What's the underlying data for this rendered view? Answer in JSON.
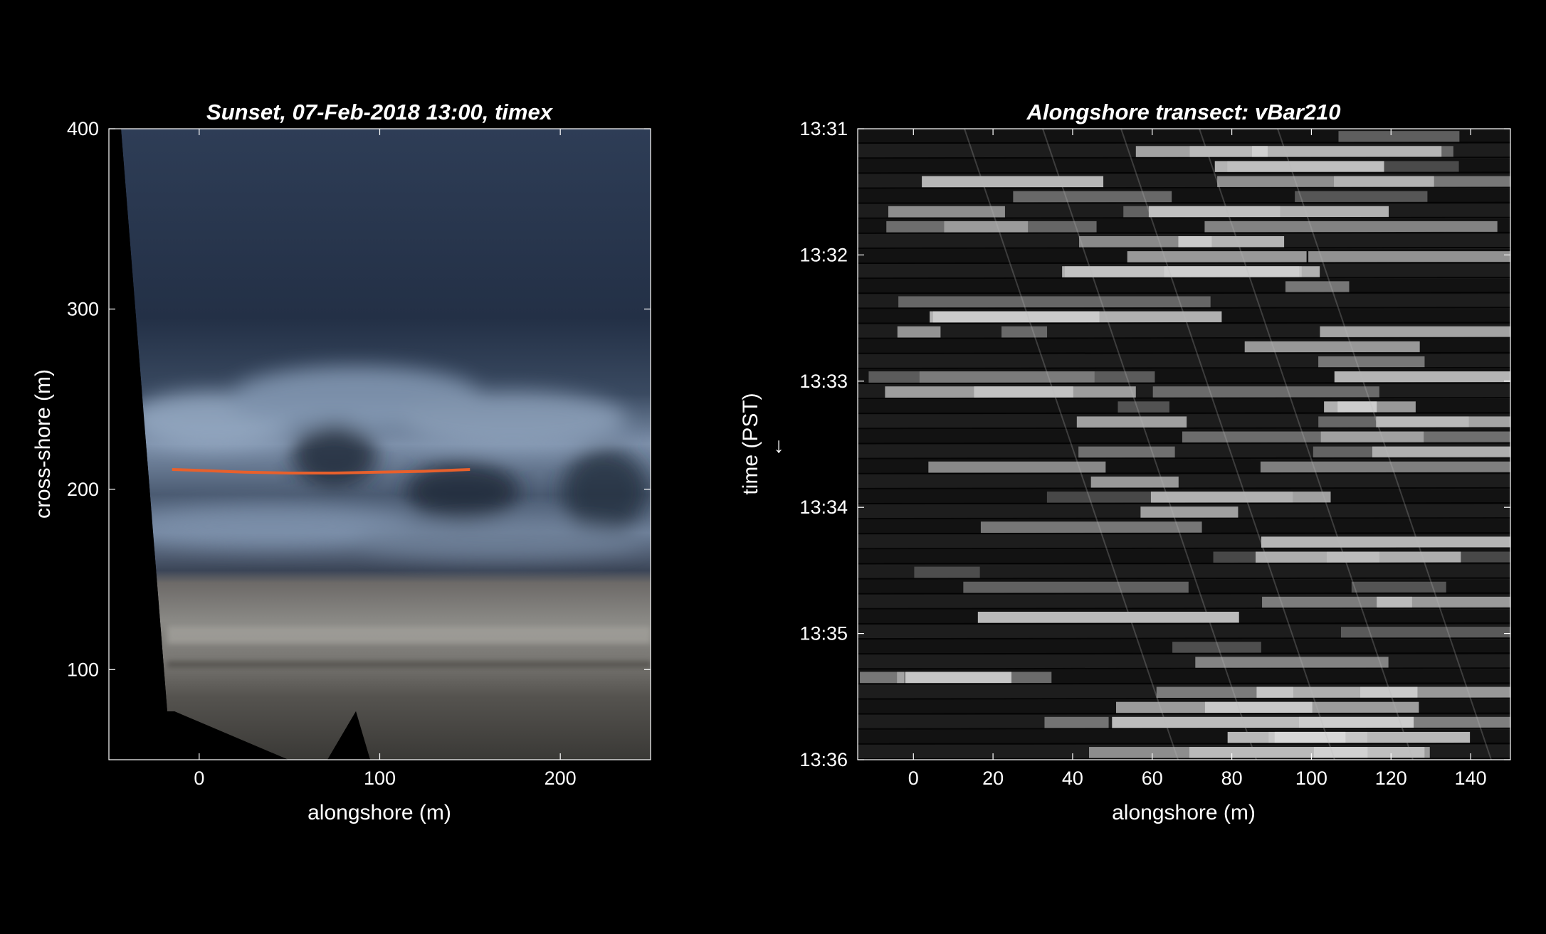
{
  "chart_data": [
    {
      "type": "image",
      "title": "Sunset, 07-Feb-2018 13:00, timex",
      "xlabel": "alongshore (m)",
      "ylabel": "cross-shore (m)",
      "xlim": [
        -50,
        250
      ],
      "ylim": [
        50,
        400
      ],
      "xticks": [
        0,
        100,
        200
      ],
      "yticks": [
        100,
        200,
        300,
        400
      ],
      "xtick_labels": [
        "0",
        "100",
        "200"
      ],
      "ytick_labels": [
        "100",
        "200",
        "300",
        "400"
      ],
      "series": [
        {
          "x": [
            -15,
            0,
            25,
            50,
            75,
            100,
            125,
            150
          ],
          "y": [
            211,
            210.5,
            209.5,
            209,
            209,
            209.5,
            210,
            211
          ],
          "color": "#e8602c"
        }
      ],
      "colors": {
        "water_deep": "#1c2636",
        "water_mid": "#3f4f66",
        "foam": "#8ea1b9",
        "sand": "#7d7a75",
        "line": "#e8602c"
      }
    },
    {
      "type": "timestack",
      "title": "Alongshore transect:  vBar210",
      "xlabel": "alongshore (m)",
      "ylabel": "time (PST)",
      "ylabel_arrow": "↓",
      "xlim": [
        -14,
        150
      ],
      "ylim": [
        "13:31",
        "13:36"
      ],
      "xticks": [
        0,
        20,
        40,
        60,
        80,
        100,
        120,
        140
      ],
      "xtick_labels": [
        "0",
        "20",
        "40",
        "60",
        "80",
        "100",
        "120",
        "140"
      ],
      "yticks": [
        "13:31",
        "13:32",
        "13:33",
        "13:34",
        "13:35",
        "13:36"
      ],
      "ytick_labels": [
        "13:31",
        "13:32",
        "13:33",
        "13:34",
        "13:35",
        "13:36"
      ],
      "y_reversed": true,
      "colors": {
        "background": "#161616",
        "foam": "#e6e6e6"
      }
    }
  ]
}
